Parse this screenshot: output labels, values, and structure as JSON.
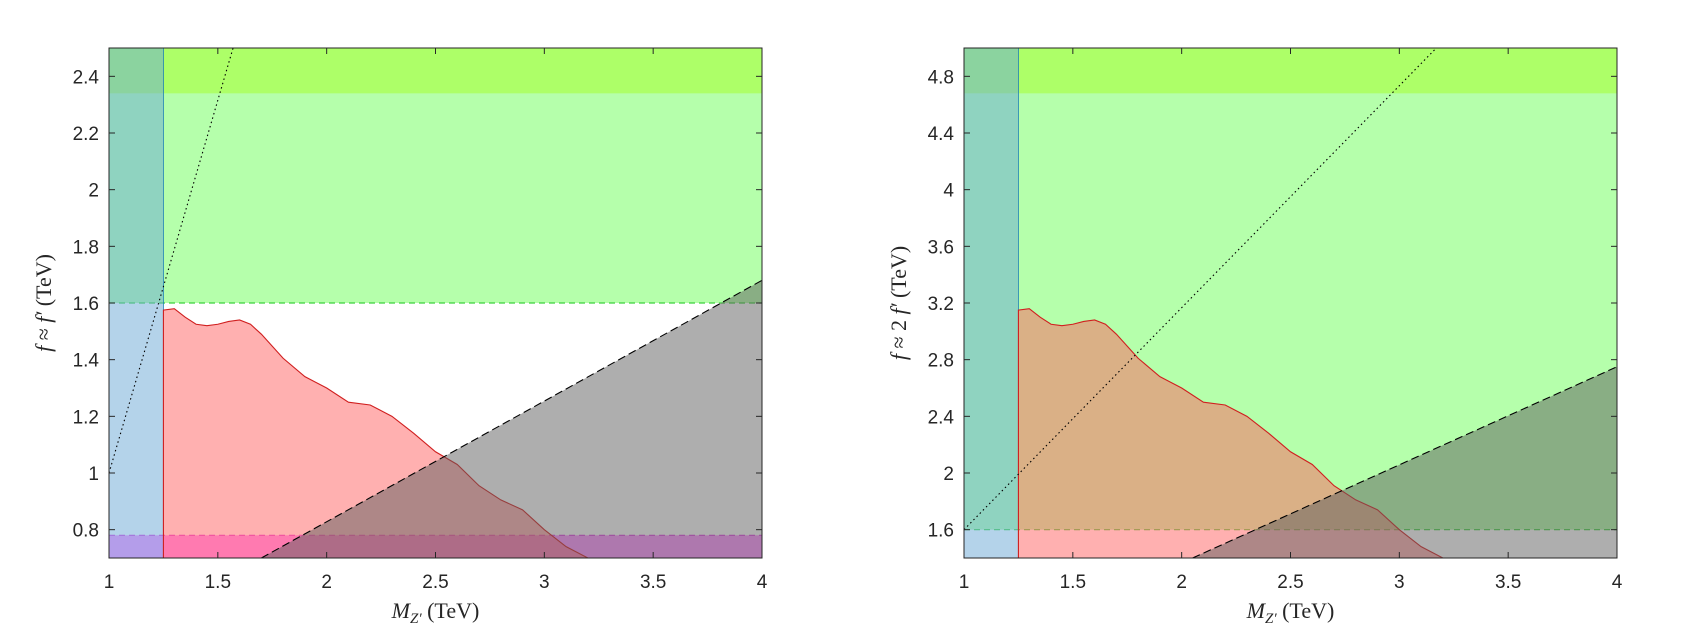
{
  "chart_data": [
    {
      "type": "area",
      "xlabel": {
        "var": "M",
        "sub": "Z′",
        "unit": " (TeV)"
      },
      "ylabel": {
        "lhs": "f",
        "rel": " ≈ ",
        "rhs": "f′",
        "unit": " (TeV)"
      },
      "xlim": [
        1,
        4
      ],
      "ylim": [
        0.7,
        2.5
      ],
      "xticks": [
        "1",
        "1.5",
        "2",
        "2.5",
        "3",
        "3.5",
        "4"
      ],
      "xtick_values": [
        1,
        1.5,
        2,
        2.5,
        3,
        3.5,
        4
      ],
      "yticks": [
        "0.8",
        "1",
        "1.2",
        "1.4",
        "1.6",
        "1.8",
        "2",
        "2.2",
        "2.4"
      ],
      "ytick_values": [
        0.8,
        1,
        1.2,
        1.4,
        1.6,
        1.8,
        2,
        2.2,
        2.4
      ],
      "regions": [
        {
          "id": "green-band",
          "kind": "hband",
          "y": [
            1.6,
            2.5
          ],
          "color": "#7cff6c",
          "opacity": 0.57,
          "dashed_edge_y": 1.6
        },
        {
          "id": "top-band",
          "kind": "hband",
          "y": [
            2.34,
            2.5
          ],
          "color": "#a6ff20",
          "opacity": 0.48
        },
        {
          "id": "magenta-band",
          "kind": "hband",
          "y": [
            0.7,
            0.78
          ],
          "color": "#ff28ff",
          "opacity": 0.5,
          "dashed_edge_y": 0.78
        },
        {
          "id": "blue-band",
          "kind": "vband",
          "x": [
            1,
            1.25
          ],
          "color": "#69a8d6",
          "opacity": 0.5
        },
        {
          "id": "red-region",
          "kind": "curve",
          "color": "#ff6262",
          "opacity": 0.5,
          "edge_color": "#d01f1f",
          "points": [
            [
              1.25,
              1.575
            ],
            [
              1.3,
              1.58
            ],
            [
              1.35,
              1.55
            ],
            [
              1.4,
              1.525
            ],
            [
              1.45,
              1.52
            ],
            [
              1.5,
              1.525
            ],
            [
              1.55,
              1.535
            ],
            [
              1.6,
              1.54
            ],
            [
              1.65,
              1.525
            ],
            [
              1.7,
              1.49
            ],
            [
              1.8,
              1.405
            ],
            [
              1.9,
              1.34
            ],
            [
              2.0,
              1.3
            ],
            [
              2.1,
              1.25
            ],
            [
              2.2,
              1.24
            ],
            [
              2.3,
              1.2
            ],
            [
              2.4,
              1.14
            ],
            [
              2.5,
              1.075
            ],
            [
              2.6,
              1.03
            ],
            [
              2.7,
              0.955
            ],
            [
              2.8,
              0.905
            ],
            [
              2.9,
              0.87
            ],
            [
              3.0,
              0.8
            ],
            [
              3.1,
              0.74
            ],
            [
              3.2,
              0.7
            ]
          ]
        },
        {
          "id": "grey-triangle",
          "kind": "polygon",
          "color": "#5e5e5e",
          "opacity": 0.5,
          "points": [
            [
              1.7,
              0.7
            ],
            [
              4,
              1.68
            ],
            [
              4,
              0.7
            ]
          ]
        }
      ],
      "lines": [
        {
          "id": "diagonal-dotted",
          "style": "dotted",
          "points": [
            [
              1,
              1
            ],
            [
              1.57,
              2.5
            ]
          ]
        },
        {
          "id": "boundary-dashed",
          "style": "dashed",
          "points": [
            [
              1.7,
              0.7
            ],
            [
              4,
              1.68
            ]
          ]
        }
      ]
    },
    {
      "type": "area",
      "xlabel": {
        "var": "M",
        "sub": "Z′",
        "unit": " (TeV)"
      },
      "ylabel": {
        "lhs": "f",
        "rel": " ≈ 2 ",
        "rhs": "f′",
        "unit": " (TeV)"
      },
      "xlim": [
        1,
        4
      ],
      "ylim": [
        1.4,
        5.0
      ],
      "xticks": [
        "1",
        "1.5",
        "2",
        "2.5",
        "3",
        "3.5",
        "4"
      ],
      "xtick_values": [
        1,
        1.5,
        2,
        2.5,
        3,
        3.5,
        4
      ],
      "yticks": [
        "1.6",
        "2",
        "2.4",
        "2.8",
        "3.2",
        "3.6",
        "4",
        "4.4",
        "4.8"
      ],
      "ytick_values": [
        1.6,
        2,
        2.4,
        2.8,
        3.2,
        3.6,
        4,
        4.4,
        4.8
      ],
      "regions": [
        {
          "id": "green-band",
          "kind": "hband",
          "y": [
            1.6,
            5.0
          ],
          "color": "#7cff6c",
          "opacity": 0.57,
          "dashed_edge_y": 1.6
        },
        {
          "id": "top-band",
          "kind": "hband",
          "y": [
            4.68,
            5.0
          ],
          "color": "#a6ff20",
          "opacity": 0.48
        },
        {
          "id": "blue-band",
          "kind": "vband",
          "x": [
            1,
            1.25
          ],
          "color": "#69a8d6",
          "opacity": 0.5
        },
        {
          "id": "red-region",
          "kind": "curve",
          "color": "#ff6262",
          "opacity": 0.5,
          "edge_color": "#d01f1f",
          "points": [
            [
              1.25,
              3.15
            ],
            [
              1.3,
              3.16
            ],
            [
              1.35,
              3.1
            ],
            [
              1.4,
              3.05
            ],
            [
              1.45,
              3.04
            ],
            [
              1.5,
              3.05
            ],
            [
              1.55,
              3.07
            ],
            [
              1.6,
              3.08
            ],
            [
              1.65,
              3.05
            ],
            [
              1.7,
              2.98
            ],
            [
              1.8,
              2.81
            ],
            [
              1.9,
              2.68
            ],
            [
              2.0,
              2.6
            ],
            [
              2.1,
              2.5
            ],
            [
              2.2,
              2.48
            ],
            [
              2.3,
              2.4
            ],
            [
              2.4,
              2.28
            ],
            [
              2.5,
              2.15
            ],
            [
              2.6,
              2.06
            ],
            [
              2.7,
              1.91
            ],
            [
              2.8,
              1.81
            ],
            [
              2.9,
              1.74
            ],
            [
              3.0,
              1.6
            ],
            [
              3.1,
              1.48
            ],
            [
              3.2,
              1.4
            ]
          ]
        },
        {
          "id": "grey-triangle",
          "kind": "polygon",
          "color": "#5e5e5e",
          "opacity": 0.5,
          "points": [
            [
              2.05,
              1.4
            ],
            [
              4,
              2.75
            ],
            [
              4,
              1.4
            ]
          ]
        }
      ],
      "lines": [
        {
          "id": "diagonal-dotted",
          "style": "dotted",
          "points": [
            [
              1,
              1.6
            ],
            [
              3.17,
              5.0
            ]
          ]
        },
        {
          "id": "boundary-dashed",
          "style": "dashed",
          "points": [
            [
              2.05,
              1.4
            ],
            [
              4,
              2.75
            ]
          ]
        }
      ]
    }
  ]
}
